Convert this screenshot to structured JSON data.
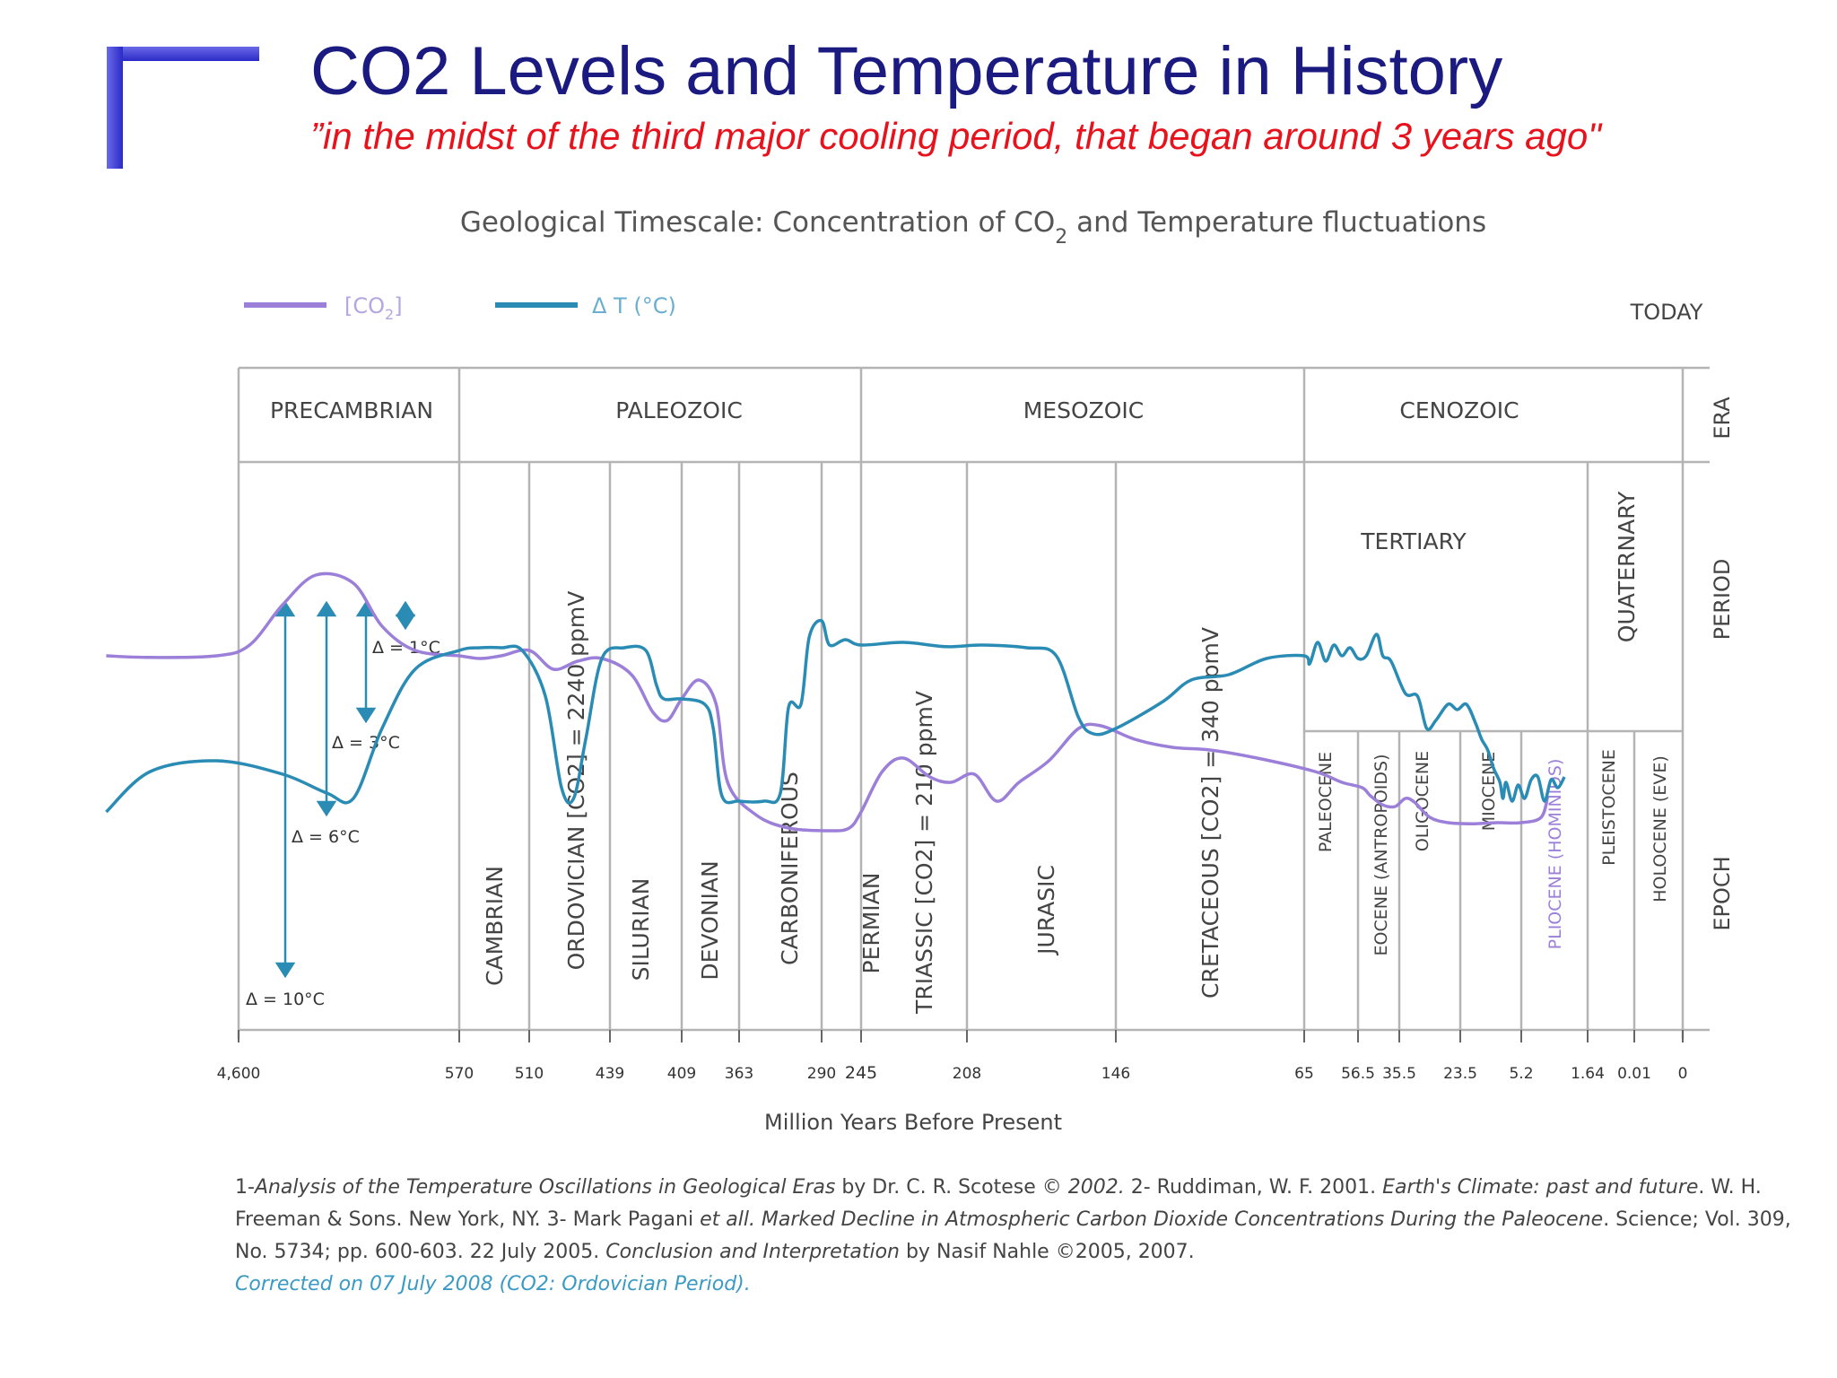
{
  "slide": {
    "title": "CO2 Levels and Temperature in History",
    "subtitle": "”in the midst of the third major cooling period, that began around 3 years ago\""
  },
  "colors": {
    "co2": "#9b7fd9",
    "temp": "#2a8cb4",
    "title": "#1a1a80",
    "subtitle": "#e8121c",
    "grid": "#b4b4b4",
    "accent": "#3a9ac4"
  },
  "chart_data": {
    "type": "line",
    "title_pre": "Geological Timescale: Concentration of CO",
    "title_sub": "2",
    "title_post": " and Temperature  fluctuations",
    "xlabel": "Million Years Before Present",
    "legend": {
      "co2_pre": "[CO",
      "co2_sub": "2",
      "co2_post": "]",
      "temp": "Δ T (°C)",
      "placement": "top-left"
    },
    "today_label": "TODAY",
    "row_labels": {
      "era": "ERA",
      "period": "PERIOD",
      "epoch": "EPOCH"
    },
    "x_ticks": [
      "4,600",
      "570",
      "510",
      "439",
      "409",
      "363",
      "290",
      "245",
      "208",
      "146",
      "65",
      "56.5",
      "35.5",
      "23.5",
      "5.2",
      "1.64",
      "0.01",
      "0"
    ],
    "eras": [
      "PRECAMBRIAN",
      "PALEOZOIC",
      "MESOZOIC",
      "CENOZOIC"
    ],
    "periods": [
      "CAMBRIAN",
      "ORDOVICIAN [CO2] = 2240 ppmV",
      "SILURIAN",
      "DEVONIAN",
      "CARBONIFEROUS",
      "PERMIAN",
      "TRIASSIC [CO2] = 210 ppmV",
      "JURASIC",
      "CRETACEOUS [CO2] = 340 ppmV",
      "TERTIARY",
      "QUATERNARY"
    ],
    "epochs": [
      "PALEOCENE",
      "EOCENE (ANTROPOIDS)",
      "OLIGOCENE",
      "MIOCENE",
      "PLIOCENE (HOMINIDS)",
      "PLEISTOCENE",
      "HOLOCENE (EVE)"
    ],
    "delta_labels": [
      "Δ = 1°C",
      "Δ = 3°C",
      "Δ = 6°C",
      "Δ = 10°C"
    ],
    "series": [
      {
        "name": "[CO2]",
        "points": [
          [
            -0.6,
            1.35
          ],
          [
            -0.4,
            1.32
          ],
          [
            -0.1,
            1.35
          ],
          [
            0.05,
            1.55
          ],
          [
            0.2,
            2.3
          ],
          [
            0.35,
            2.85
          ],
          [
            0.52,
            2.7
          ],
          [
            0.65,
            1.9
          ],
          [
            0.8,
            1.45
          ],
          [
            1.0,
            1.35
          ],
          [
            1.3,
            1.3
          ],
          [
            1.6,
            1.35
          ],
          [
            2.0,
            1.45
          ],
          [
            2.3,
            1.1
          ],
          [
            2.6,
            1.25
          ],
          [
            2.9,
            1.3
          ],
          [
            3.3,
            1.0
          ],
          [
            3.6,
            0.3
          ],
          [
            3.8,
            0.15
          ],
          [
            4.0,
            0.55
          ],
          [
            4.3,
            0.9
          ],
          [
            4.6,
            0.45
          ],
          [
            4.8,
            -1.0
          ],
          [
            5.2,
            -1.6
          ],
          [
            5.6,
            -1.85
          ],
          [
            6.2,
            -1.9
          ],
          [
            6.7,
            -1.85
          ],
          [
            7.0,
            -1.55
          ],
          [
            7.2,
            -0.8
          ],
          [
            7.4,
            -0.55
          ],
          [
            7.65,
            -0.9
          ],
          [
            7.85,
            -1.0
          ],
          [
            8.05,
            -0.85
          ],
          [
            8.2,
            -1.35
          ],
          [
            8.35,
            -1.0
          ],
          [
            8.55,
            -0.6
          ],
          [
            8.75,
            0.0
          ],
          [
            8.9,
            0.05
          ],
          [
            9.1,
            -0.2
          ],
          [
            9.3,
            -0.35
          ],
          [
            9.5,
            -0.4
          ],
          [
            9.75,
            -0.55
          ],
          [
            10.2,
            -0.8
          ],
          [
            10.7,
            -1.0
          ],
          [
            11.1,
            -1.1
          ],
          [
            11.3,
            -1.25
          ],
          [
            11.6,
            -1.42
          ],
          [
            11.9,
            -1.45
          ],
          [
            12.1,
            -1.3
          ],
          [
            12.25,
            -1.37
          ],
          [
            12.5,
            -1.65
          ],
          [
            12.8,
            -1.75
          ],
          [
            13.2,
            -1.77
          ],
          [
            13.6,
            -1.75
          ],
          [
            14.0,
            -1.75
          ],
          [
            14.3,
            -1.65
          ],
          [
            14.4,
            -1.25
          ]
        ]
      },
      {
        "name": "Δ T (°C)",
        "points": [
          [
            -0.6,
            -1.55
          ],
          [
            -0.4,
            -0.8
          ],
          [
            -0.1,
            -0.6
          ],
          [
            0.2,
            -0.85
          ],
          [
            0.4,
            -1.2
          ],
          [
            0.52,
            -1.3
          ],
          [
            0.65,
            0.0
          ],
          [
            0.8,
            1.1
          ],
          [
            1.0,
            1.45
          ],
          [
            1.3,
            1.5
          ],
          [
            1.6,
            1.5
          ],
          [
            1.9,
            1.45
          ],
          [
            2.2,
            0.6
          ],
          [
            2.4,
            -1.1
          ],
          [
            2.55,
            -1.3
          ],
          [
            2.7,
            -0.2
          ],
          [
            2.9,
            1.3
          ],
          [
            3.2,
            1.5
          ],
          [
            3.5,
            1.45
          ],
          [
            3.65,
            0.8
          ],
          [
            3.75,
            0.55
          ],
          [
            4.0,
            0.55
          ],
          [
            4.4,
            0.45
          ],
          [
            4.55,
            0.0
          ],
          [
            4.7,
            -1.25
          ],
          [
            5.0,
            -1.35
          ],
          [
            5.3,
            -1.35
          ],
          [
            5.5,
            -1.2
          ],
          [
            5.6,
            0.4
          ],
          [
            5.75,
            0.45
          ],
          [
            5.85,
            1.7
          ],
          [
            6.0,
            2.0
          ],
          [
            6.2,
            1.55
          ],
          [
            6.6,
            1.65
          ],
          [
            7.0,
            1.55
          ],
          [
            7.4,
            1.6
          ],
          [
            7.8,
            1.52
          ],
          [
            8.1,
            1.55
          ],
          [
            8.4,
            1.5
          ],
          [
            8.6,
            1.35
          ],
          [
            8.75,
            0.2
          ],
          [
            8.85,
            -0.1
          ],
          [
            9.0,
            0.0
          ],
          [
            9.25,
            0.5
          ],
          [
            9.4,
            0.9
          ],
          [
            9.6,
            1.0
          ],
          [
            9.8,
            1.3
          ],
          [
            10.0,
            1.35
          ],
          [
            10.1,
            1.2
          ],
          [
            10.25,
            1.6
          ],
          [
            10.4,
            1.25
          ],
          [
            10.55,
            1.55
          ],
          [
            10.7,
            1.35
          ],
          [
            10.85,
            1.5
          ],
          [
            11.0,
            1.3
          ],
          [
            11.2,
            1.35
          ],
          [
            11.45,
            1.75
          ],
          [
            11.6,
            1.35
          ],
          [
            11.8,
            1.25
          ],
          [
            12.1,
            0.65
          ],
          [
            12.3,
            0.6
          ],
          [
            12.45,
            0.0
          ],
          [
            12.6,
            0.15
          ],
          [
            12.8,
            0.45
          ],
          [
            12.95,
            0.35
          ],
          [
            13.1,
            0.45
          ],
          [
            13.25,
            0.1
          ],
          [
            13.35,
            -0.2
          ],
          [
            13.45,
            -0.4
          ],
          [
            13.55,
            -0.75
          ],
          [
            13.65,
            -1.0
          ],
          [
            13.7,
            -1.3
          ],
          [
            13.75,
            -1.0
          ],
          [
            13.85,
            -1.35
          ],
          [
            13.95,
            -1.05
          ],
          [
            14.05,
            -1.3
          ],
          [
            14.15,
            -0.95
          ],
          [
            14.25,
            -0.9
          ],
          [
            14.35,
            -1.35
          ],
          [
            14.45,
            -0.95
          ],
          [
            14.55,
            -1.1
          ],
          [
            14.65,
            -0.9
          ]
        ]
      }
    ]
  },
  "footnote": {
    "p1": "1-",
    "i1": "Analysis of the Temperature Oscillations in Geological Eras",
    "p2": " by Dr. C. R. Scotese  © ",
    "i2": "2002.",
    "p3": " 2- Ruddiman, W. F. 2001. ",
    "i3": "Earth's Climate: past and future",
    "p4": ". W. H. Freeman & Sons. New York, NY. 3- Mark Pagani ",
    "i4": "et all. Marked Decline in Atmospheric Carbon Dioxide Concentrations During the Paleocene",
    "p5": ". Science; Vol. 309, No. 5734; pp. 600-603. 22 July 2005. ",
    "i5": "Conclusion and Interpretation",
    "p6": " by Nasif Nahle ©2005, 2007.",
    "corrected": "Corrected on 07 July 2008 (CO2: Ordovician Period)."
  }
}
